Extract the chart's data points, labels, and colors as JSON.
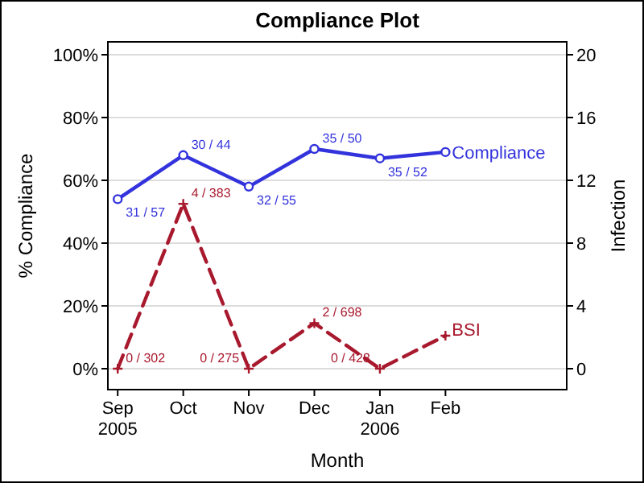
{
  "chart_data": {
    "type": "line",
    "title": "Compliance Plot",
    "xlabel": "Month",
    "ylabel": "% Compliance",
    "y2label": "Infection",
    "categories": [
      "Sep\n2005",
      "Oct",
      "Nov",
      "Dec",
      "Jan\n2006",
      "Feb"
    ],
    "series": [
      {
        "name": "Compliance",
        "color": "#3333dd",
        "values": [
          54,
          68,
          58,
          70,
          67,
          69
        ],
        "marker": "circle",
        "line_style": "solid"
      },
      {
        "name": "BSI",
        "color": "#a8192e",
        "axis": "y2",
        "values": [
          0,
          10.5,
          0,
          2.9,
          0,
          2.1
        ],
        "marker": "cross",
        "line_style": "dashed"
      }
    ],
    "annotations": [
      {
        "text": "31 / 57",
        "x": "Sep\n2005",
        "y": 54
      },
      {
        "text": "30 / 44",
        "x": "Oct",
        "y": 68
      },
      {
        "text": "32 / 55",
        "x": "Nov",
        "y": 58
      },
      {
        "text": "35 / 50",
        "x": "Dec",
        "y": 70
      },
      {
        "text": "35 / 52",
        "x": "Jan\n2006",
        "y": 67
      },
      {
        "text": "0 / 302",
        "x": "Sep\n2005",
        "y": 0
      },
      {
        "text": "4 / 383",
        "x": "Oct",
        "y": 52.5
      },
      {
        "text": "0 / 275",
        "x": "Nov",
        "y": 0
      },
      {
        "text": "2 / 698",
        "x": "Dec",
        "y": 14.5
      },
      {
        "text": "0 / 428",
        "x": "Jan\n2006",
        "y": 0
      }
    ],
    "ylim": [
      0,
      100
    ],
    "yticks": [
      {
        "value": 0,
        "label": "0%"
      },
      {
        "value": 20,
        "label": "20%"
      },
      {
        "value": 40,
        "label": "40%"
      },
      {
        "value": 60,
        "label": "60%"
      },
      {
        "value": 80,
        "label": "80%"
      },
      {
        "value": 100,
        "label": "100%"
      }
    ],
    "y2lim": [
      0,
      20
    ],
    "y2ticks": [
      0,
      4,
      8,
      12,
      16,
      20
    ],
    "grid": "y"
  }
}
